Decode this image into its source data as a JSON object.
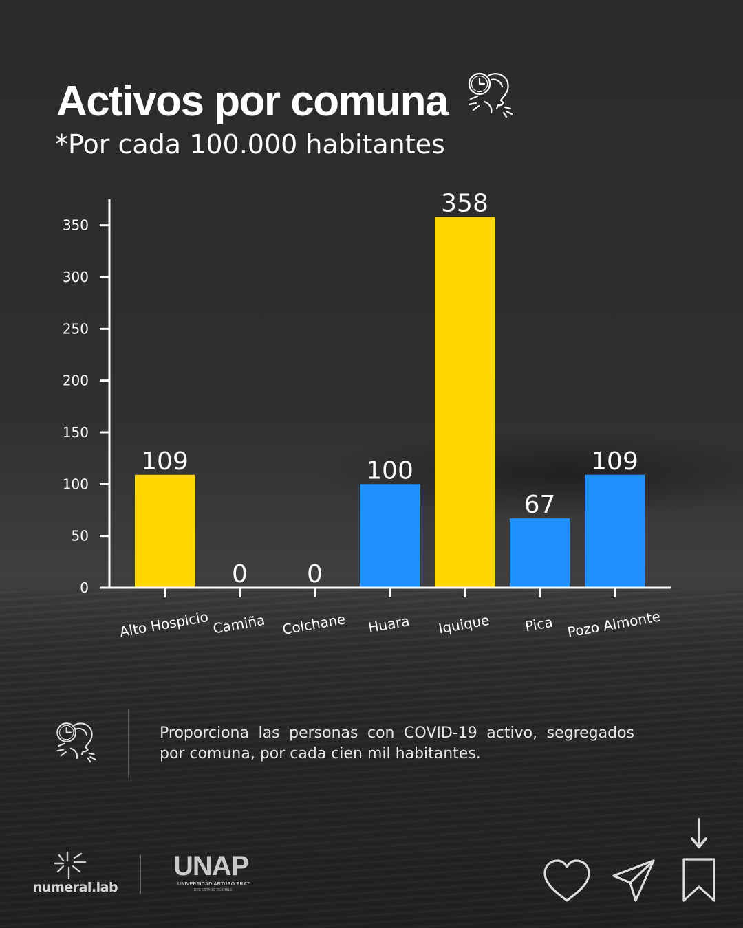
{
  "header": {
    "title": "Activos por comuna",
    "subtitle_pre": "*Por cada ",
    "subtitle_num": "100.000",
    "subtitle_post": " habitantes",
    "title_icon": "sick-person-clock-icon"
  },
  "chart_data": {
    "type": "bar",
    "title": "",
    "xlabel": "",
    "ylabel": "",
    "categories": [
      "Alto Hospicio",
      "Camiña",
      "Colchane",
      "Huara",
      "Iquique",
      "Pica",
      "Pozo Almonte"
    ],
    "values": [
      109,
      0,
      0,
      100,
      358,
      67,
      109
    ],
    "bar_colors": [
      "#FFD600",
      "#1E90FF",
      "#1E90FF",
      "#1E90FF",
      "#FFD600",
      "#1E90FF",
      "#1E90FF"
    ],
    "data_labels": [
      "109",
      "0",
      "0",
      "100",
      "358",
      "67",
      "109"
    ],
    "ylim": [
      0,
      375
    ],
    "yticks": [
      0,
      50,
      100,
      150,
      200,
      250,
      300,
      350
    ],
    "grid": false,
    "axis_color": "#ffffff"
  },
  "description": {
    "text": "Proporciona las personas con COVID-19 activo, segregados por comuna, por cada cien mil habitantes.",
    "icon": "sick-person-clock-icon"
  },
  "footer": {
    "brand": "numeral.lab",
    "brand_icon": "numeral-lab-logo-icon",
    "university_logo": "UNAP",
    "university_name": "UNIVERSIDAD ARTURO PRAT",
    "university_sub": "DEL ESTADO DE CHILE"
  },
  "actions": {
    "like_icon": "heart-icon",
    "share_icon": "send-icon",
    "save_icon": "bookmark-icon",
    "hint_icon": "arrow-down-icon"
  }
}
